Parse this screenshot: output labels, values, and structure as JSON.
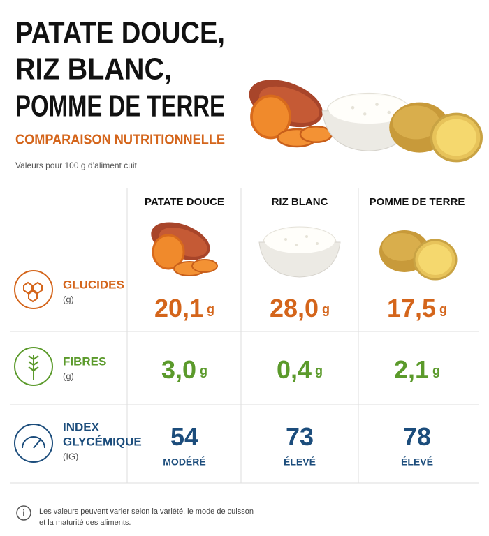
{
  "header": {
    "title": [
      "PATATE DOUCE,",
      "RIZ BLANC,",
      "POMME DE TERRE"
    ],
    "subtitle": "COMPARAISON NUTRITIONNELLE",
    "note": "Valeurs pour 100 g d’aliment cuit"
  },
  "table": {
    "columns": [
      "PATATE DOUCE",
      "RIZ BLANC",
      "POMME DE TERRE"
    ],
    "rows": [
      {
        "label": [
          "GLUCIDES"
        ],
        "unit": "(g)",
        "value_unit": "g",
        "values": [
          "20,1",
          "28,0",
          "17,5"
        ],
        "color": "#d4651b"
      },
      {
        "label": [
          "FIBRES"
        ],
        "unit": "(g)",
        "value_unit": "g",
        "values": [
          "3,0",
          "0,4",
          "2,1"
        ],
        "color": "#5b9a2b"
      },
      {
        "label": [
          "INDEX",
          "GLYCÉMIQUE"
        ],
        "unit": "(IG)",
        "values": [
          "54",
          "73",
          "78"
        ],
        "levels": [
          "MODÉRÉ",
          "ÉLEVÉ",
          "ÉLEVÉ"
        ],
        "color": "#1c4d7c"
      }
    ]
  },
  "footer": {
    "note": [
      "Les valeurs peuvent varier selon la variété, le mode de cuisson",
      "et la maturité des aliments."
    ]
  }
}
